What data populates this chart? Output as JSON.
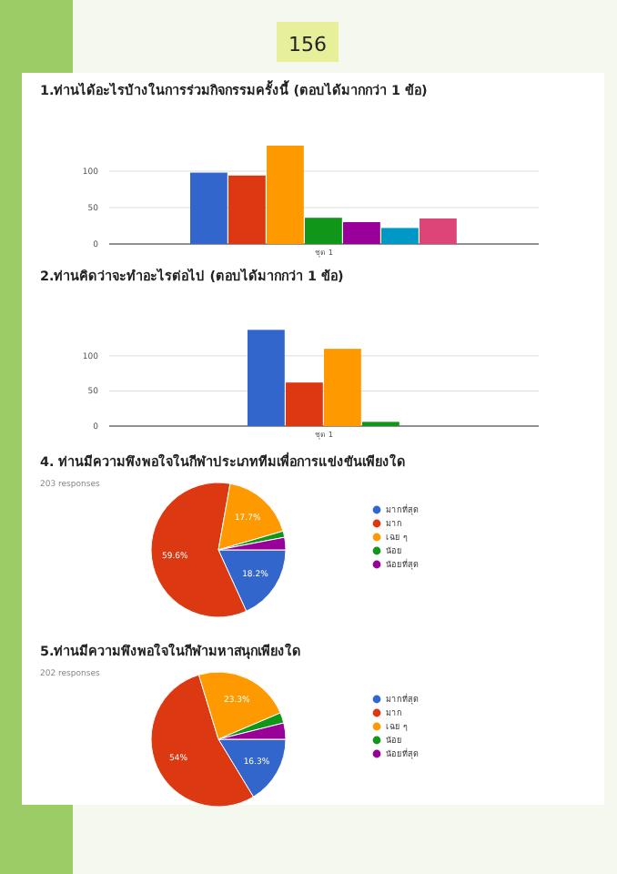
{
  "chart_data": [
    {
      "type": "bar",
      "title": "1.ท่านได้อะไรบ้างในการร่วมกิจกรรมครั้งนี้ (ตอบได้มากกว่า 1 ข้อ)",
      "annotations": [
        "156"
      ],
      "categories": [
        "ชุด 1"
      ],
      "series": [
        {
          "color": "#3366cc",
          "values": [
            98
          ]
        },
        {
          "color": "#dc3912",
          "values": [
            94
          ]
        },
        {
          "color": "#ff9900",
          "values": [
            135
          ]
        },
        {
          "color": "#109618",
          "values": [
            36
          ]
        },
        {
          "color": "#990099",
          "values": [
            30
          ]
        },
        {
          "color": "#0099c6",
          "values": [
            22
          ]
        },
        {
          "color": "#dd4477",
          "values": [
            35
          ]
        }
      ],
      "ylim": [
        0,
        140
      ],
      "yticks": [
        0,
        50,
        100
      ],
      "grid": "y"
    },
    {
      "type": "bar",
      "title": "2.ท่านคิดว่าจะทำอะไรต่อไป (ตอบได้มากกว่า 1 ข้อ)",
      "categories": [
        "ชุด 1"
      ],
      "series": [
        {
          "color": "#3366cc",
          "values": [
            137
          ]
        },
        {
          "color": "#dc3912",
          "values": [
            62
          ]
        },
        {
          "color": "#ff9900",
          "values": [
            110
          ]
        },
        {
          "color": "#109618",
          "values": [
            6
          ]
        }
      ],
      "ylim": [
        0,
        140
      ],
      "yticks": [
        0,
        50,
        100
      ],
      "grid": "y"
    },
    {
      "type": "pie",
      "title": "4. ท่านมีความพึงพอใจในกีฬาประเภททีมเพื่อการแข่งขันเพียงใด",
      "subtitle": "203 responses",
      "categories": [
        "มากที่สุด",
        "มาก",
        "เฉย ๆ",
        "น้อย",
        "น้อยที่สุด"
      ],
      "values": [
        18.2,
        59.6,
        17.7,
        1.5,
        3.0
      ],
      "value_labels": [
        "18.2%",
        "59.6%",
        "17.7%",
        null,
        null
      ],
      "colors": [
        "#3366cc",
        "#dc3912",
        "#ff9900",
        "#109618",
        "#990099"
      ],
      "legend": "right"
    },
    {
      "type": "pie",
      "title": "5.ท่านมีความพึงพอใจในกีฬามหาสนุกเพียงใด",
      "subtitle": "202 responses",
      "categories": [
        "มากที่สุด",
        "มาก",
        "เฉย ๆ",
        "น้อย",
        "น้อยที่สุด"
      ],
      "values": [
        16.3,
        54,
        23.3,
        2.5,
        3.9
      ],
      "value_labels": [
        "16.3%",
        "54%",
        "23.3%",
        null,
        null
      ],
      "colors": [
        "#3366cc",
        "#dc3912",
        "#ff9900",
        "#109618",
        "#990099"
      ],
      "legend": "right"
    }
  ]
}
